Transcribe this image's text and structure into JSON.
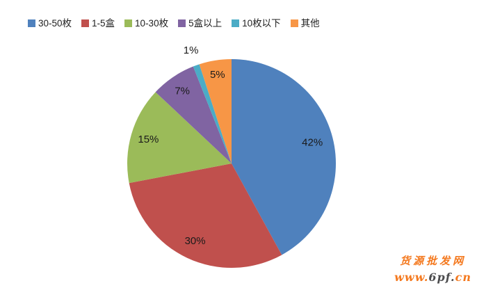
{
  "chart_data": {
    "type": "pie",
    "title": "",
    "categories": [
      "30-50枚",
      "1-5盒",
      "10-30枚",
      "5盒以上",
      "10枚以下",
      "其他"
    ],
    "values": [
      42,
      30,
      15,
      7,
      1,
      5
    ],
    "data_labels": [
      "42%",
      "30%",
      "15%",
      "7%",
      "1%",
      "5%"
    ],
    "colors": [
      "#4F81BD",
      "#C0504D",
      "#9BBB59",
      "#8064A2",
      "#4BACC6",
      "#F79646"
    ],
    "legend_position": "top",
    "start_angle_deg": 0,
    "direction": "clockwise",
    "label_radius_factors": [
      0.8,
      0.82,
      0.83,
      0.84,
      1.15,
      0.86
    ]
  },
  "watermark": {
    "line1": "货源批发网",
    "line2_parts": [
      {
        "text": "www.",
        "color": "#F4791F"
      },
      {
        "text": "6pf.",
        "color": "#4D4D4F"
      },
      {
        "text": "cn",
        "color": "#F4791F"
      }
    ]
  }
}
